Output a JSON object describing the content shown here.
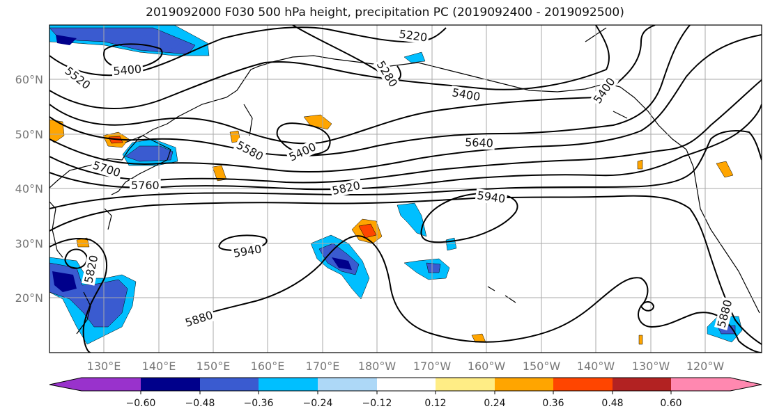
{
  "title": "2019092000 F030 500 hPa height, precipitation PC (2019092400 - 2019092500)",
  "map": {
    "lon_labels": [
      "130°E",
      "140°E",
      "150°E",
      "160°E",
      "170°E",
      "180°W",
      "170°W",
      "160°W",
      "150°W",
      "140°W",
      "130°W",
      "120°W"
    ],
    "lat_labels": [
      "60°N",
      "50°N",
      "40°N",
      "30°N",
      "20°N"
    ],
    "contour_labels": [
      "5220",
      "5280",
      "5400",
      "5400",
      "5400",
      "5400",
      "5520",
      "5580",
      "5640",
      "5700",
      "5760",
      "5820",
      "5820",
      "5880",
      "5880",
      "5940",
      "5940"
    ]
  },
  "colorbar": {
    "ticks": [
      "−0.60",
      "−0.48",
      "−0.36",
      "−0.24",
      "−0.12",
      "0.12",
      "0.24",
      "0.36",
      "0.48",
      "0.60"
    ],
    "colors": [
      "#9932cc",
      "#00008b",
      "#3a5bd0",
      "#00bfff",
      "#add8f7",
      "#ffffff",
      "#ffed85",
      "#ffa500",
      "#ff4500",
      "#b22222",
      "#ff88b0"
    ]
  }
}
